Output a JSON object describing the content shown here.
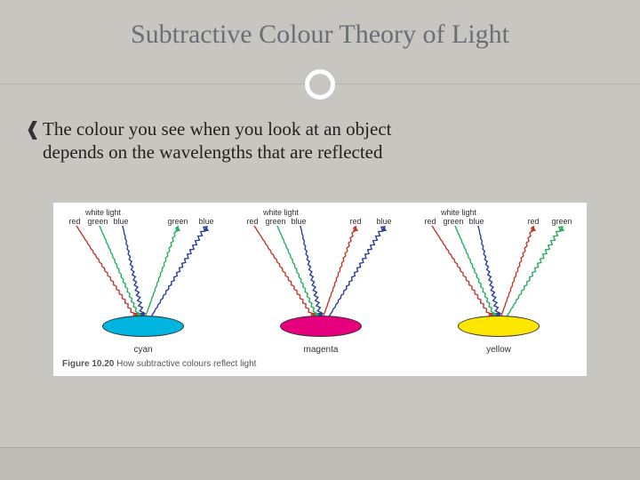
{
  "title": "Subtractive Colour Theory of Light",
  "bullet_glyph": "❰",
  "body_line1": "The colour you see when you look at an object",
  "body_line2": "depends on the wavelengths that are reflected",
  "colors": {
    "bg": "#c7c6c0",
    "title": "#6b6e77",
    "text": "#222222",
    "hr": "#b3b2ad",
    "circle_ring": "#ffffff",
    "red": "#c0392b",
    "green": "#27ae60",
    "blue": "#2c3e9e",
    "cyan": "#00b4e0",
    "magenta": "#e6007e",
    "yellow": "#ffe600"
  },
  "figure": {
    "caption_bold": "Figure 10.20",
    "caption_rest": " How subtractive colours reflect light",
    "panels": [
      {
        "in_labels": [
          "red",
          "green",
          "blue"
        ],
        "in_header": "white light",
        "out_labels": [
          "green",
          "blue"
        ],
        "reflect": [
          "green",
          "blue"
        ],
        "disc_color": "#00b4e0",
        "disc_label": "cyan"
      },
      {
        "in_labels": [
          "red",
          "green",
          "blue"
        ],
        "in_header": "white light",
        "out_labels": [
          "red",
          "blue"
        ],
        "reflect": [
          "red",
          "blue"
        ],
        "disc_color": "#e6007e",
        "disc_label": "magenta"
      },
      {
        "in_labels": [
          "red",
          "green",
          "blue"
        ],
        "in_header": "white light",
        "out_labels": [
          "red",
          "green"
        ],
        "reflect": [
          "red",
          "green"
        ],
        "disc_color": "#ffe600",
        "disc_label": "yellow"
      }
    ],
    "ray_style": {
      "stroke_width": 1.4,
      "amplitude": 2,
      "wavelength": 6
    }
  }
}
